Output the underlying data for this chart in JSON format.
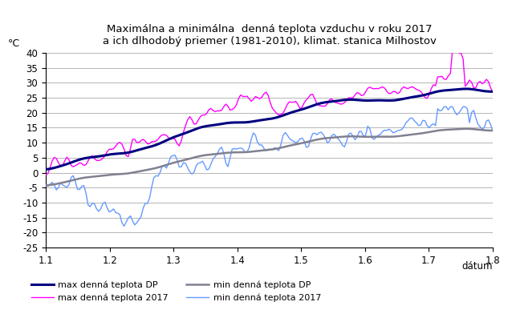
{
  "title_line1": "Maximálna a minimálna  denná teplota vzduchu v roku 2017",
  "title_line2": "a ich dlhodobý priemer (1981-2010), klimat. stanica Milhostov",
  "ylabel": "°C",
  "xlabel": "dátum",
  "ylim": [
    -25,
    40
  ],
  "yticks": [
    -25,
    -20,
    -15,
    -10,
    -5,
    0,
    5,
    10,
    15,
    20,
    25,
    30,
    35,
    40
  ],
  "xticks": [
    1.1,
    1.2,
    1.3,
    1.4,
    1.5,
    1.6,
    1.7,
    1.8
  ],
  "xlim": [
    1.1,
    1.8
  ],
  "color_max_dp": "#000080",
  "color_max_2017": "#FF00FF",
  "color_min_dp": "#808090",
  "color_min_2017": "#6699FF",
  "lw_max_dp": 2.2,
  "lw_min_dp": 1.8,
  "lw_2017": 1.0,
  "legend_labels": [
    "max denná teplota DP",
    "max denná teplota 2017",
    "min denná teplota DP",
    "min denná teplota 2017"
  ],
  "n_points": 212
}
